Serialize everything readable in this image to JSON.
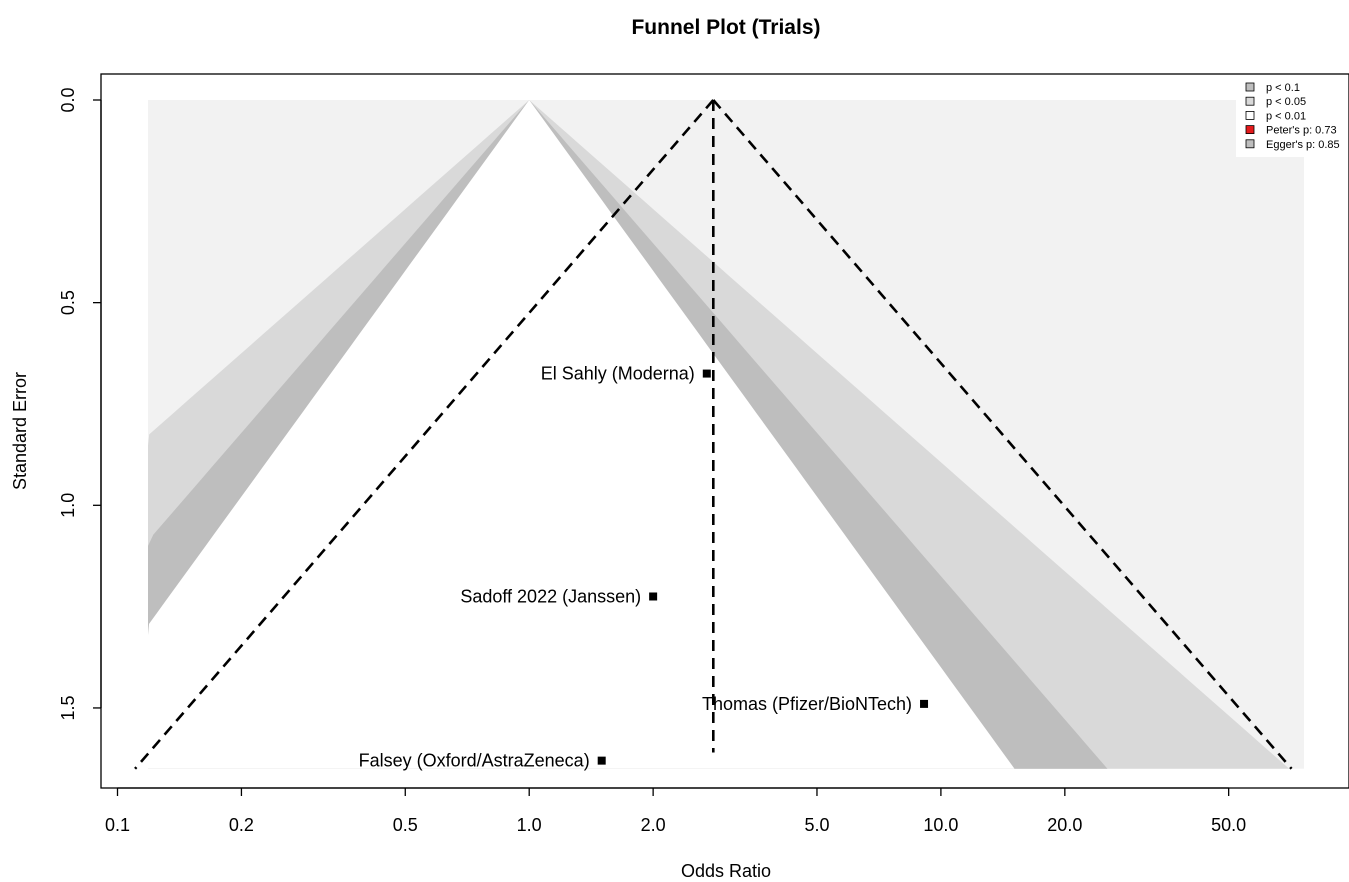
{
  "chart_data": {
    "type": "scatter",
    "title": "Funnel Plot (Trials)",
    "xlabel": "Odds Ratio",
    "ylabel": "Standard Error",
    "x_scale": "log",
    "y_reversed": true,
    "xlim": [
      0.1,
      80
    ],
    "ylim": [
      0,
      1.65
    ],
    "x_ticks": [
      0.1,
      0.2,
      0.5,
      1.0,
      2.0,
      5.0,
      10.0,
      20.0,
      50.0
    ],
    "x_tick_labels": [
      "0.1",
      "0.2",
      "0.5",
      "1.0",
      "2.0",
      "5.0",
      "10.0",
      "20.0",
      "50.0"
    ],
    "y_ticks": [
      0,
      0.5,
      1.0,
      1.5
    ],
    "y_tick_labels": [
      "0.0",
      "0.5",
      "1.0",
      "1.5"
    ],
    "studies": [
      {
        "label": "El Sahly (Moderna)",
        "or": 2.7,
        "se": 0.675
      },
      {
        "label": "Sadoff 2022 (Janssen)",
        "or": 2.0,
        "se": 1.225
      },
      {
        "label": "Thomas (Pfizer/BioNTech)",
        "or": 9.1,
        "se": 1.49
      },
      {
        "label": "Falsey (Oxford/AstraZeneca)",
        "or": 1.5,
        "se": 1.63
      }
    ],
    "contour_center_or": 1.0,
    "pooled_or": 2.8,
    "contours": [
      {
        "level": "p < 0.1",
        "z": 1.645,
        "color": "#bebebe"
      },
      {
        "level": "p < 0.05",
        "z": 1.96,
        "color": "#d9d9d9"
      },
      {
        "level": "p < 0.01",
        "z": 2.576,
        "color": "#f2f2f2"
      }
    ],
    "legend_position": "top-right",
    "legend": [
      {
        "label": "p < 0.1",
        "color": "#bebebe"
      },
      {
        "label": "p < 0.05",
        "color": "#d9d9d9"
      },
      {
        "label": "p < 0.01",
        "color": "#ffffff"
      },
      {
        "label": "Peter's p: 0.73",
        "color": "#e41a1c"
      },
      {
        "label": "Egger's p: 0.85",
        "color": "#bebebe"
      }
    ]
  }
}
